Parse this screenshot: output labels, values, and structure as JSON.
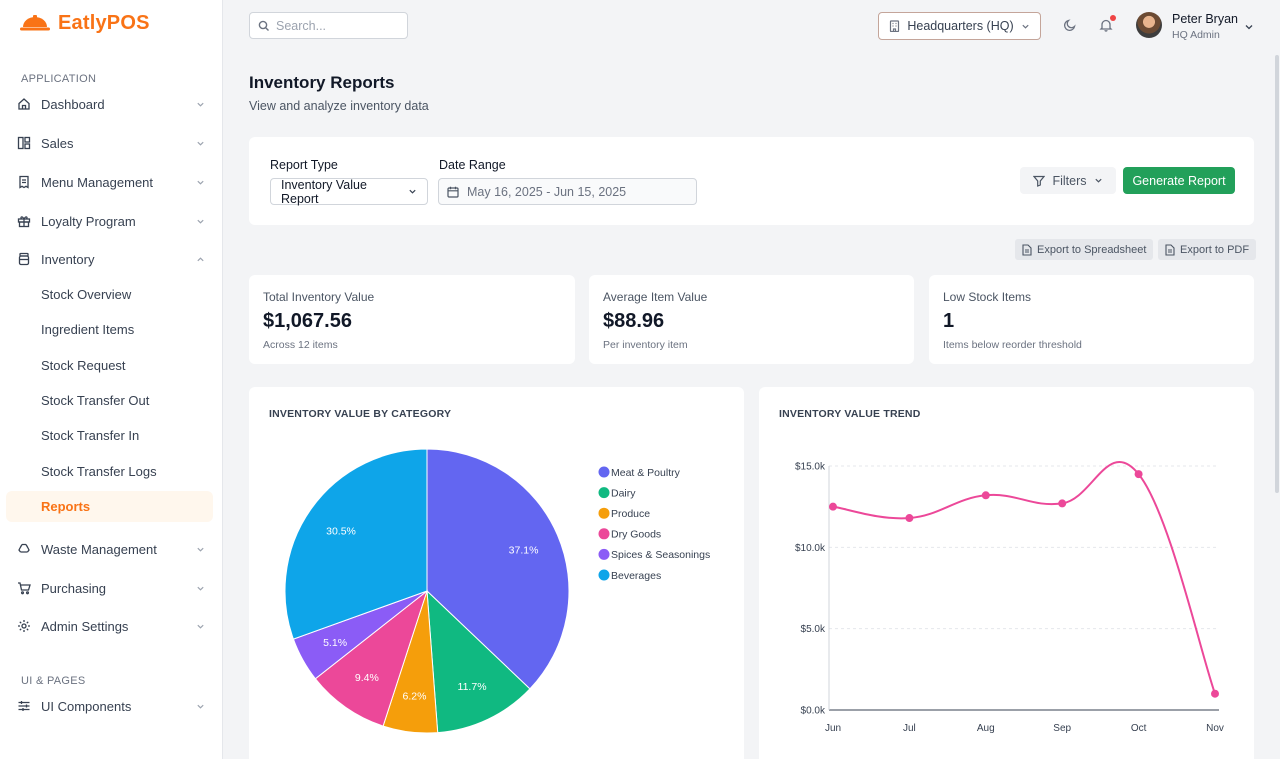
{
  "app": {
    "name": "EatlyPOS"
  },
  "sidebar": {
    "sections": {
      "application": "APPLICATION",
      "ui_pages": "UI & PAGES"
    },
    "items": {
      "dashboard": "Dashboard",
      "sales": "Sales",
      "menu": "Menu Management",
      "loyalty": "Loyalty Program",
      "inventory": "Inventory",
      "waste": "Waste Management",
      "purchasing": "Purchasing",
      "admin": "Admin Settings",
      "ui_components": "UI Components"
    },
    "inventory_sub": {
      "stock_overview": "Stock Overview",
      "ingredient_items": "Ingredient Items",
      "stock_request": "Stock Request",
      "transfer_out": "Stock Transfer Out",
      "transfer_in": "Stock Transfer In",
      "transfer_logs": "Stock Transfer Logs",
      "reports": "Reports"
    }
  },
  "header": {
    "search_placeholder": "Search...",
    "location": "Headquarters (HQ)",
    "user_name": "Peter Bryan",
    "user_role": "HQ Admin"
  },
  "page": {
    "title": "Inventory Reports",
    "subtitle": "View and analyze inventory data"
  },
  "filters": {
    "report_type_label": "Report Type",
    "report_type_value": "Inventory Value Report",
    "date_range_label": "Date Range",
    "date_range_value": "May 16, 2025 - Jun 15, 2025",
    "filters_button": "Filters",
    "generate_button": "Generate Report"
  },
  "exports": {
    "spreadsheet": "Export to Spreadsheet",
    "pdf": "Export to PDF"
  },
  "stats": {
    "total": {
      "label": "Total Inventory Value",
      "value": "$1,067.56",
      "note": "Across 12 items"
    },
    "average": {
      "label": "Average Item Value",
      "value": "$88.96",
      "note": "Per inventory item"
    },
    "low_stock": {
      "label": "Low Stock Items",
      "value": "1",
      "note": "Items below reorder threshold"
    }
  },
  "colors": {
    "accent": "#f97316",
    "primary_button": "#22a05a",
    "trend_line": "#ec4899"
  },
  "chart_data": [
    {
      "type": "pie",
      "title": "INVENTORY VALUE BY CATEGORY",
      "legend_position": "right",
      "categories": [
        "Meat & Poultry",
        "Dairy",
        "Produce",
        "Dry Goods",
        "Spices & Seasonings",
        "Beverages"
      ],
      "values": [
        37.1,
        11.7,
        6.2,
        9.4,
        5.1,
        30.5
      ],
      "labels": [
        "37.1%",
        "11.7%",
        "6.2%",
        "9.4%",
        "5.1%",
        "30.5%"
      ],
      "colors": [
        "#6366f1",
        "#10b981",
        "#f59e0b",
        "#ec4899",
        "#8b5cf6",
        "#0ea5e9"
      ]
    },
    {
      "type": "line",
      "title": "INVENTORY VALUE TREND",
      "categories": [
        "Jun",
        "Jul",
        "Aug",
        "Sep",
        "Oct",
        "Nov"
      ],
      "values": [
        12500,
        11800,
        13200,
        12700,
        14500,
        1000
      ],
      "ylim": [
        0,
        15000
      ],
      "yticks": [
        0,
        5000,
        10000,
        15000
      ],
      "ytick_labels": [
        "$0.0k",
        "$5.0k",
        "$10.0k",
        "$15.0k"
      ],
      "grid": true,
      "color": "#ec4899"
    }
  ]
}
